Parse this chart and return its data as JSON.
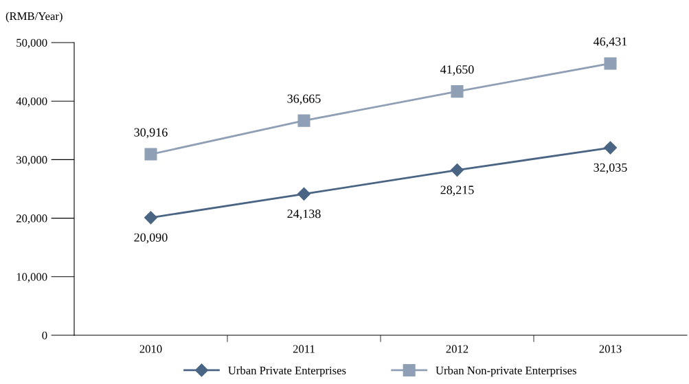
{
  "chart_data": {
    "type": "line",
    "ylabel": "(RMB/Year)",
    "categories": [
      "2010",
      "2011",
      "2012",
      "2013"
    ],
    "series": [
      {
        "name": "Urban Private Enterprises",
        "color": "#4a6584",
        "marker": "diamond",
        "values": [
          20090,
          24138,
          28215,
          32035
        ],
        "value_labels": [
          "20,090",
          "24,138",
          "28,215",
          "32,035"
        ]
      },
      {
        "name": "Urban Non-private Enterprises",
        "color": "#8f9fb5",
        "marker": "square",
        "values": [
          30916,
          36665,
          41650,
          46431
        ],
        "value_labels": [
          "30,916",
          "36,665",
          "41,650",
          "46,431"
        ]
      }
    ],
    "ylim": [
      0,
      50000
    ],
    "yticks": [
      {
        "value": 0,
        "label": "0"
      },
      {
        "value": 10000,
        "label": "10,000"
      },
      {
        "value": 20000,
        "label": "20,000"
      },
      {
        "value": 30000,
        "label": "30,000"
      },
      {
        "value": 40000,
        "label": "40,000"
      },
      {
        "value": 50000,
        "label": "50,000"
      }
    ],
    "grid": false,
    "legend": "bottom",
    "line_style": "solid"
  }
}
